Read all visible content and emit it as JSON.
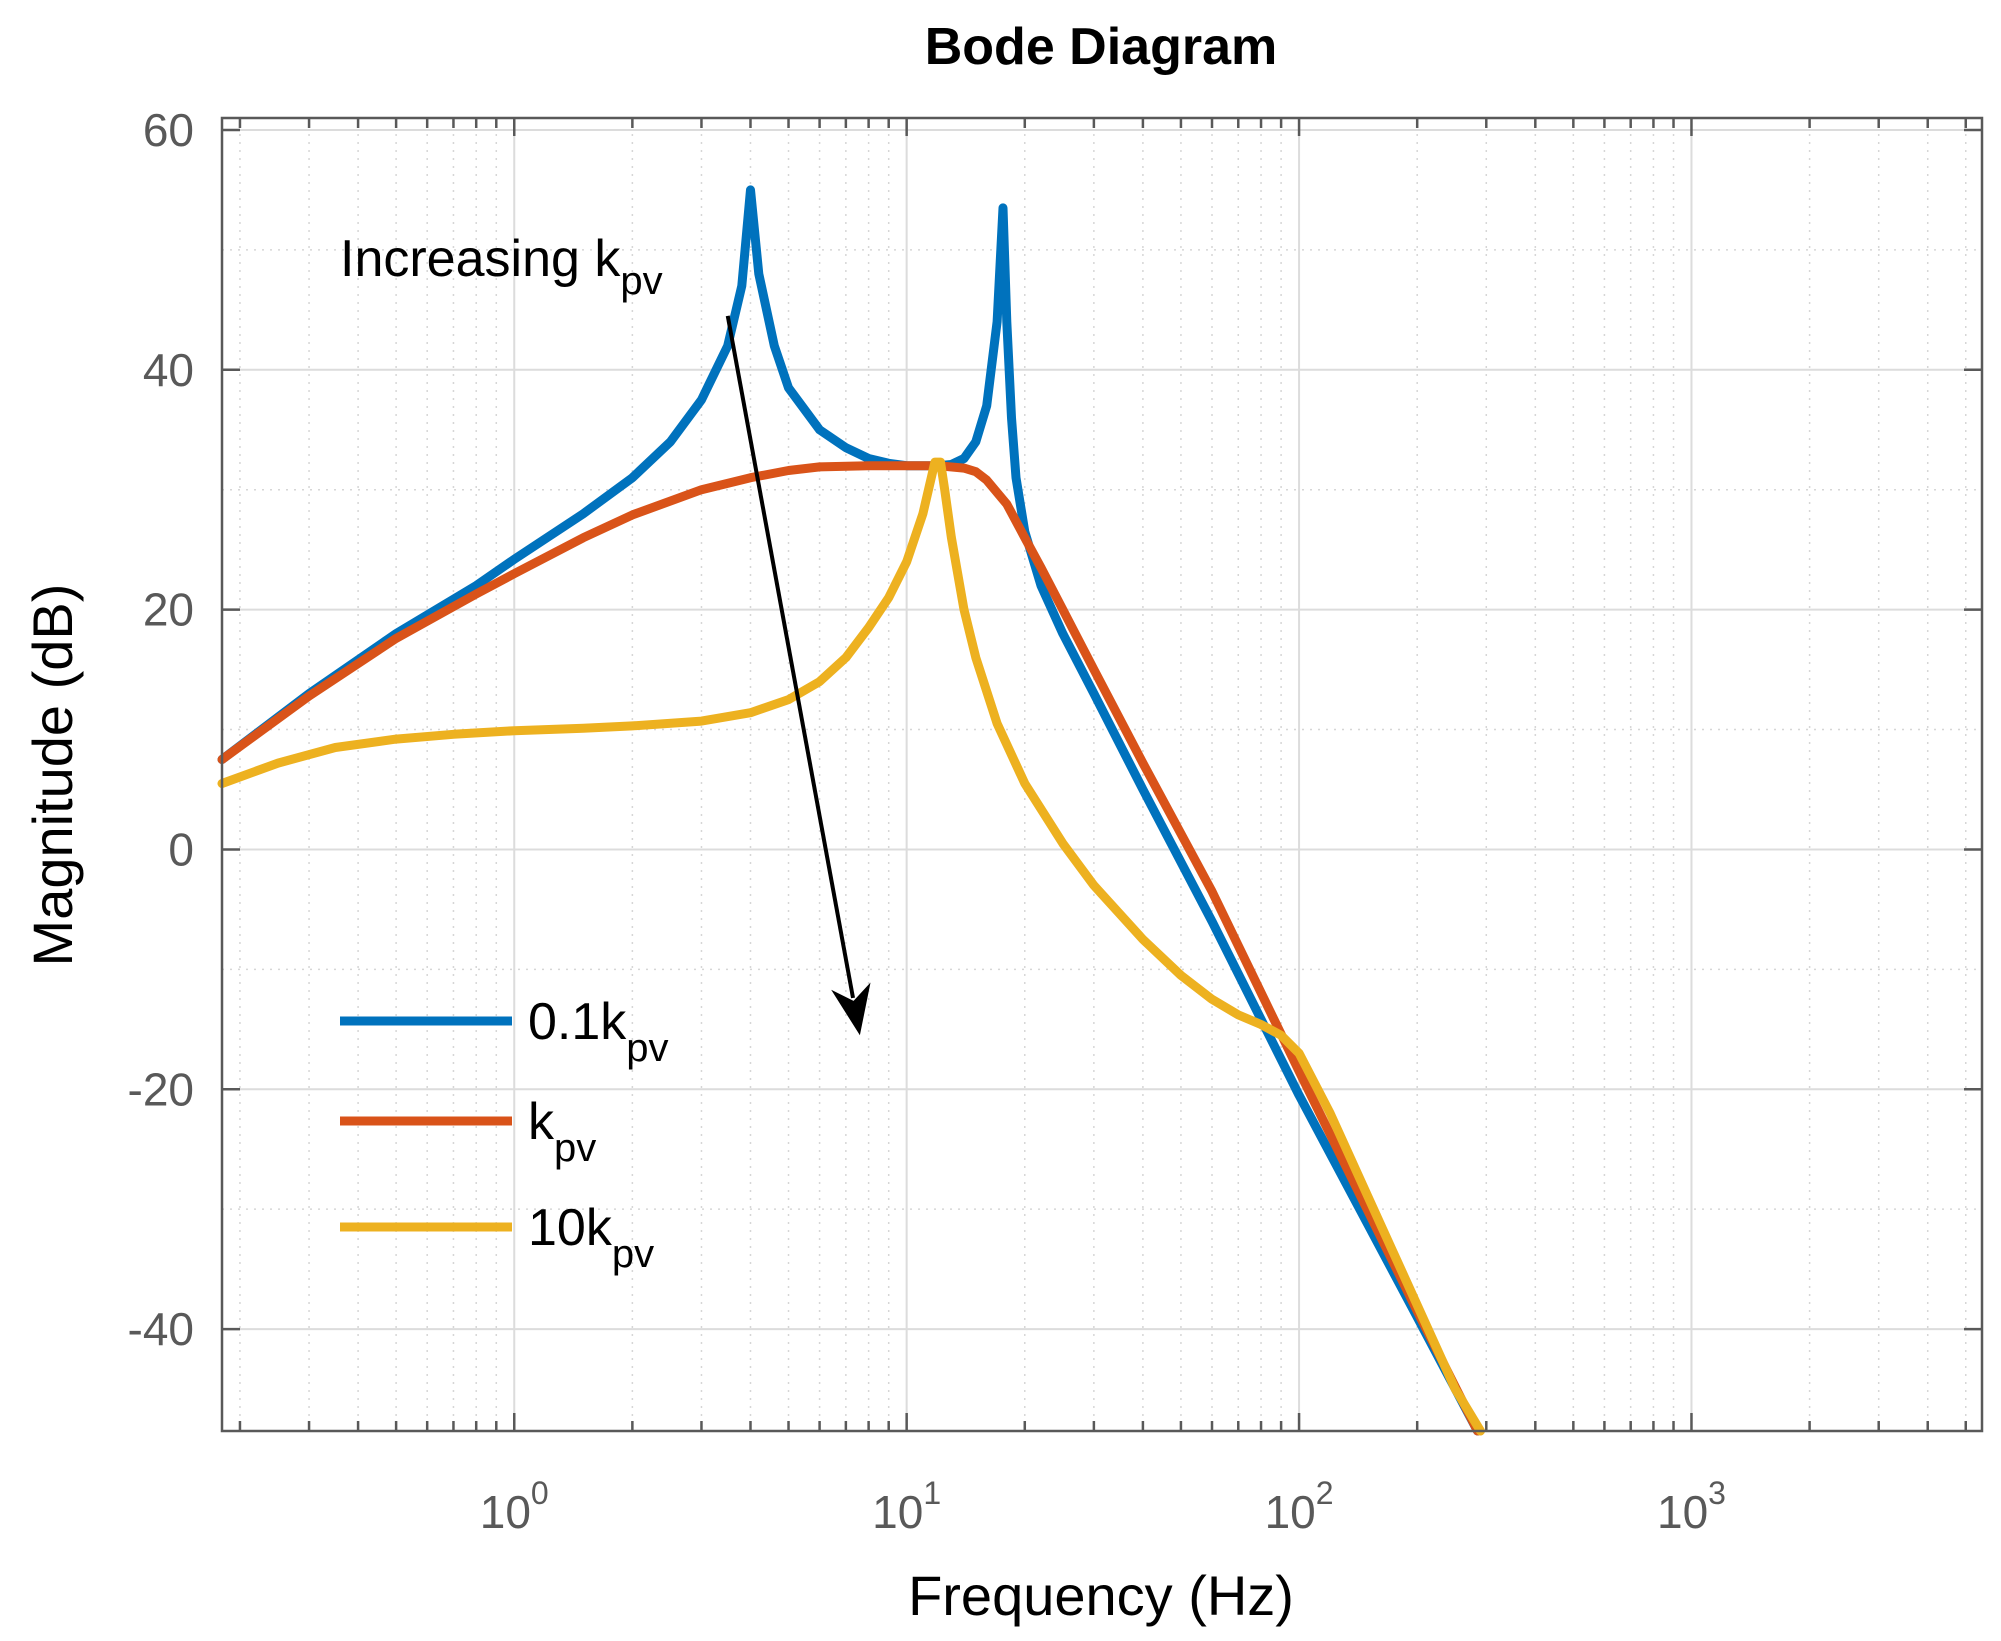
{
  "chart_data": {
    "type": "line",
    "title": "Bode Diagram",
    "xlabel": "Frequency  (Hz)",
    "ylabel": "Magnitude (dB)",
    "xscale": "log",
    "xlim": [
      0.18,
      5500
    ],
    "ylim": [
      -48.5,
      61
    ],
    "grid": true,
    "x_ticks": [
      {
        "base": "10",
        "exp": "0"
      },
      {
        "base": "10",
        "exp": "1"
      },
      {
        "base": "10",
        "exp": "2"
      },
      {
        "base": "10",
        "exp": "3"
      }
    ],
    "y_ticks": [
      "60",
      "40",
      "20",
      "0",
      "-20",
      "-40"
    ],
    "legend_position": "lower-left",
    "annotation": {
      "text": "Increasing k",
      "subscript": "pv",
      "arrow_from": [
        3.5,
        44.5
      ],
      "arrow_to": [
        7.6,
        -15.5
      ]
    },
    "series": [
      {
        "name": "0.1k",
        "subscript": "pv",
        "color": "#0072BD",
        "x": [
          0.18,
          0.3,
          0.5,
          0.8,
          1.0,
          1.5,
          2.0,
          2.5,
          3.0,
          3.5,
          3.8,
          4.0,
          4.2,
          4.6,
          5.0,
          6.0,
          7.0,
          8.0,
          9.0,
          10.0,
          11.0,
          12.0,
          13.0,
          14.0,
          15.0,
          16.0,
          17.0,
          17.6,
          18.0,
          18.5,
          19.0,
          20.0,
          22.0,
          25.0,
          30.0,
          40.0,
          60.0,
          100.0,
          200.0,
          285.0
        ],
        "y": [
          7.5,
          13.0,
          18.0,
          22.0,
          24.2,
          28.0,
          31.0,
          34.0,
          37.5,
          42.0,
          47.0,
          55.0,
          48.0,
          42.0,
          38.5,
          35.0,
          33.5,
          32.6,
          32.2,
          32.0,
          32.0,
          32.0,
          32.1,
          32.6,
          34.0,
          37.0,
          44.0,
          53.5,
          44.0,
          36.0,
          31.0,
          26.5,
          22.0,
          18.0,
          13.0,
          5.0,
          -6.0,
          -20.5,
          -39.0,
          -48.5
        ]
      },
      {
        "name": "k",
        "subscript": "pv",
        "color": "#D95319",
        "x": [
          0.18,
          0.3,
          0.5,
          0.8,
          1.0,
          1.5,
          2.0,
          3.0,
          4.0,
          5.0,
          6.0,
          8.0,
          10.0,
          12.0,
          14.0,
          15.0,
          16.0,
          18.0,
          20.0,
          22.0,
          25.0,
          30.0,
          40.0,
          60.0,
          100.0,
          200.0,
          285.0
        ],
        "y": [
          7.5,
          12.8,
          17.6,
          21.3,
          23.0,
          26.0,
          27.9,
          30.0,
          31.0,
          31.6,
          31.9,
          32.0,
          32.0,
          32.0,
          31.8,
          31.5,
          30.8,
          28.8,
          26.0,
          23.5,
          20.0,
          15.0,
          7.2,
          -3.5,
          -18.5,
          -38.5,
          -48.5
        ]
      },
      {
        "name": "10k",
        "subscript": "pv",
        "color": "#EDB120",
        "x": [
          0.18,
          0.25,
          0.35,
          0.5,
          0.7,
          1.0,
          1.5,
          2.0,
          3.0,
          4.0,
          5.0,
          6.0,
          7.0,
          8.0,
          9.0,
          10.0,
          11.0,
          11.8,
          12.2,
          12.5,
          13.0,
          14.0,
          15.0,
          17.0,
          20.0,
          25.0,
          30.0,
          40.0,
          50.0,
          60.0,
          70.0,
          80.0,
          90.0,
          100.0,
          120.0,
          150.0,
          200.0,
          250.0,
          290.0
        ],
        "y": [
          5.5,
          7.2,
          8.5,
          9.2,
          9.6,
          9.9,
          10.1,
          10.3,
          10.7,
          11.4,
          12.5,
          14.0,
          16.0,
          18.5,
          21.0,
          24.0,
          28.0,
          32.3,
          32.3,
          30.0,
          26.0,
          20.0,
          16.0,
          10.5,
          5.5,
          0.5,
          -3.0,
          -7.5,
          -10.5,
          -12.5,
          -13.8,
          -14.6,
          -15.5,
          -17.0,
          -22.0,
          -29.0,
          -38.0,
          -45.0,
          -48.5
        ]
      }
    ]
  }
}
